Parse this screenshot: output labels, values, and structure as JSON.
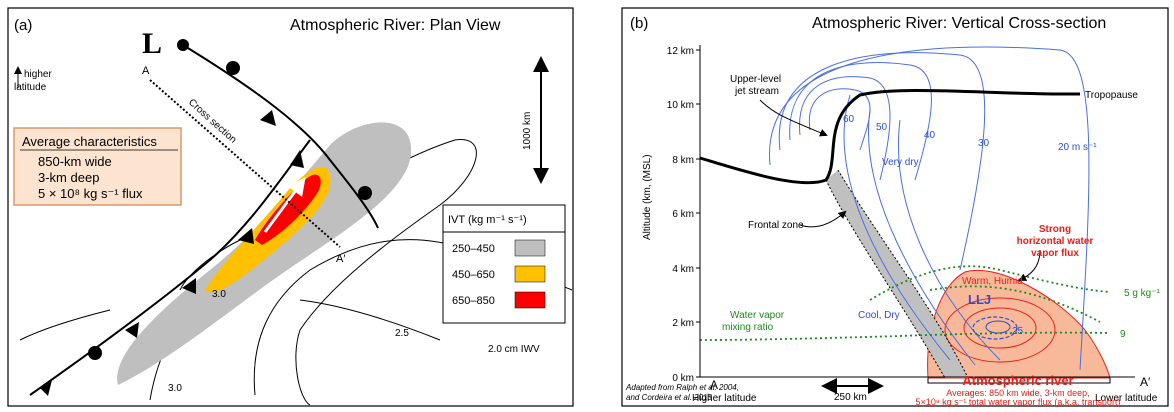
{
  "panel_a": {
    "label": "(a)",
    "title": "Atmospheric River: Plan View",
    "low": "L",
    "point_a": "A",
    "point_a_prime": "A′",
    "cross_section": "Cross section",
    "north_arrow": [
      "higher",
      "latitude"
    ],
    "scale": "1000 km",
    "characteristics": {
      "heading": "Average characteristics",
      "lines": [
        "850-km wide",
        "3-km deep",
        "5 × 10⁸ kg s⁻¹ flux"
      ]
    },
    "legend": {
      "heading": "IVT (kg m⁻¹ s⁻¹)",
      "entries": [
        "250–450",
        "450–650",
        "650–850"
      ]
    },
    "contour_labels": [
      "3.0",
      "2.0 cm IWV",
      "2.5",
      "3.0"
    ]
  },
  "panel_b": {
    "label": "(b)",
    "title": "Atmospheric River: Vertical Cross-section",
    "y_axis_label": "Altitude (km, (MSL)",
    "y_ticks": [
      "12 km",
      "10 km",
      "8 km",
      "6 km",
      "4 km",
      "2 km",
      "0 km"
    ],
    "jet_label": [
      "Upper-level",
      "jet stream"
    ],
    "tropopause": "Tropopause",
    "wind_labels": [
      "60",
      "50",
      "40",
      "30",
      "20 m s⁻¹"
    ],
    "very_dry": "Very dry",
    "frontal_zone": "Frontal zone",
    "flux_label": [
      "Strong",
      "horizontal water",
      "vapor flux"
    ],
    "warm_humid": "Warm, Humid",
    "llj": "LLJ",
    "llj_speed": "25",
    "mixing_labels": [
      "5 g kg⁻¹",
      "9"
    ],
    "cool_dry": "Cool, Dry",
    "mixing_ratio": [
      "Water vapor",
      "mixing ratio"
    ],
    "left_end": [
      "A",
      "Higher latitude"
    ],
    "right_end": [
      "A′",
      "Lower latitude"
    ],
    "distance": "250 km",
    "ar_title": "Atmospheric river",
    "ar_details": [
      "Averages: 850 km wide, 3-km deep,",
      "5×10⁸ kg s⁻¹ total water vapor flux (a.k.a. transport)"
    ],
    "credit": [
      "Adapted  from Ralph et al. 2004,",
      "and Cordeira et al. 2013"
    ]
  }
}
